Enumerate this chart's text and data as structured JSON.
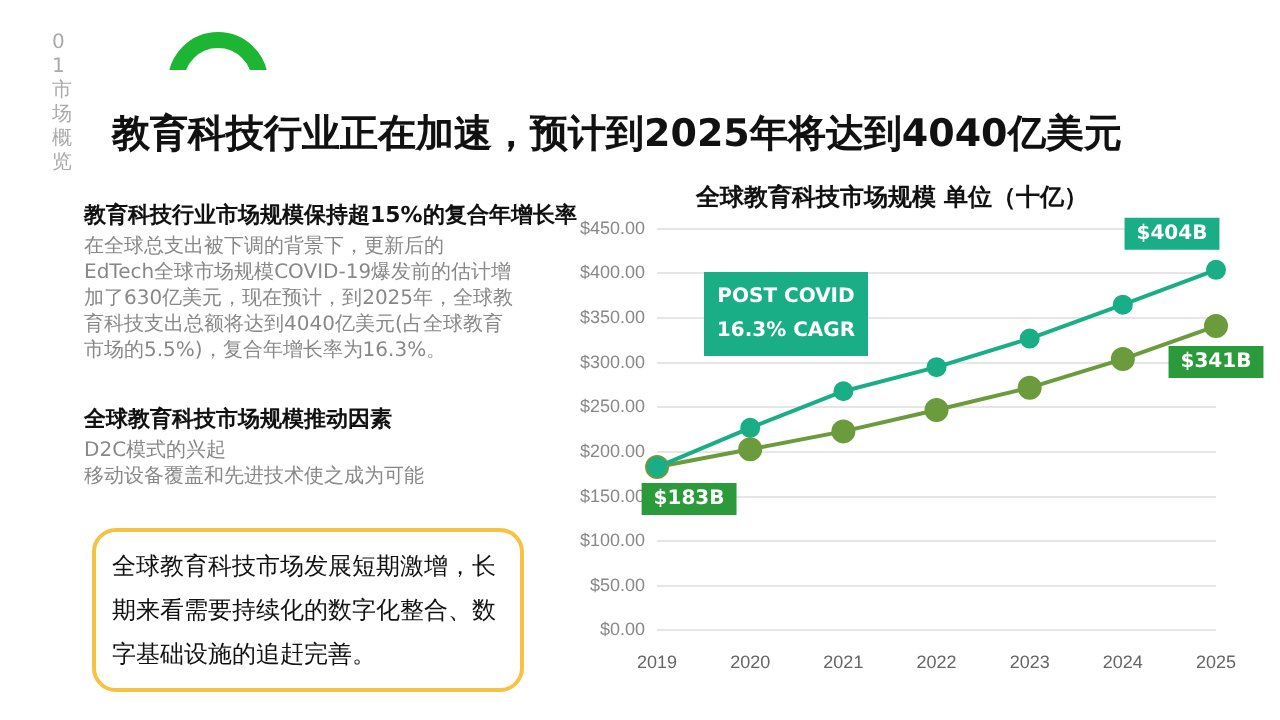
{
  "chart_data": {
    "type": "line",
    "title": "全球教育科技市场规模 单位（十亿）",
    "categories": [
      "2019",
      "2020",
      "2021",
      "2022",
      "2023",
      "2024",
      "2025"
    ],
    "series": [
      {
        "color": "#1aae86",
        "values": [
          183,
          227,
          268,
          295,
          327,
          365,
          404
        ],
        "value_labels": [
          null,
          null,
          null,
          null,
          null,
          null,
          "$404B"
        ]
      },
      {
        "color": "#6b9b3c",
        "values": [
          183,
          203,
          223,
          247,
          272,
          304,
          341
        ],
        "value_labels": [
          "$183B",
          null,
          null,
          null,
          null,
          null,
          "$341B"
        ]
      }
    ],
    "ylim": [
      0,
      450
    ],
    "yticks": [
      {
        "value": 0,
        "label": "$0.00"
      },
      {
        "value": 50,
        "label": "$50.00"
      },
      {
        "value": 100,
        "label": "$100.00"
      },
      {
        "value": 150,
        "label": "$150.00"
      },
      {
        "value": 200,
        "label": "$200.00"
      },
      {
        "value": 250,
        "label": "$250.00"
      },
      {
        "value": 300,
        "label": "$300.00"
      },
      {
        "value": 350,
        "label": "$350.00"
      },
      {
        "value": 400,
        "label": "$400.00"
      },
      {
        "value": 450,
        "label": "$450.00"
      }
    ],
    "grid": "y",
    "legend": false,
    "marker": "circle",
    "line_style": "solid",
    "annotations": [
      "教育科技行业正在加速，预计到2025年将达到4040亿美元",
      "POST COVID\n16.3% CAGR",
      "教育科技行业市场规模保持超15%的复合年增长率",
      "在全球总支出被下调的背景下，更新后的EdTech全球市场规模COVID-19爆发前的估计增加了630亿美元，现在预计，到2025年，全球教育科技支出总额将达到4040亿美元(占全球教育市场的5.5%)，复合年增长率为16.3%。",
      "全球教育科技市场规模推动因素",
      "D2C模式的兴起",
      "移动设备覆盖和先进技术使之成为可能",
      "全球教育科技市场发展短期激增，长期来看需要持续化的数字化整合、数字基础设施的追赶完善。",
      "01 市场概览"
    ]
  }
}
